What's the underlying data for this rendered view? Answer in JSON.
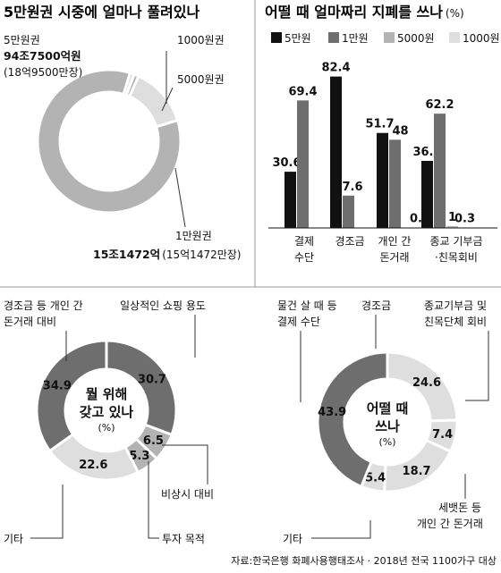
{
  "colors": {
    "black": "#111111",
    "dark": "#6e6e6e",
    "mid": "#b3b3b3",
    "light": "#dedede",
    "leader": "#333333"
  },
  "source": "자료:한국은행 화폐사용행태조사 · 2018년 전국 1100가구 대상",
  "chart_data": [
    {
      "type": "pie",
      "id": "circulation",
      "title": "5만원권 시중에 얼마나 풀려있나",
      "slices": [
        {
          "name": "5만원권",
          "value": 94.75,
          "value_label": "94조7500억원",
          "note": "(18억9500만장)",
          "color": "#b3b3b3"
        },
        {
          "name": "1만원권",
          "value": 15.1472,
          "value_label": "15조1472억",
          "note": "(15억1472만장)",
          "color": "#dedede"
        },
        {
          "name": "5000원권",
          "value": 1.2,
          "value_label": "",
          "note": "",
          "color": "#b3b3b3"
        },
        {
          "name": "1000원권",
          "value": 1.1,
          "value_label": "",
          "note": "",
          "color": "#dedede"
        }
      ]
    },
    {
      "type": "bar",
      "id": "usage",
      "title": "어떨 때 얼마짜리 지폐를 쓰나",
      "unit": "(%)",
      "categories": [
        {
          "line1": "결제",
          "line2": "수단"
        },
        {
          "line1": "경조금",
          "line2": ""
        },
        {
          "line1": "개인 간",
          "line2": "돈거래"
        },
        {
          "line1": "종교 기부금",
          "line2": "·친목회비"
        }
      ],
      "series": [
        {
          "name": "5만원",
          "color": "#111111",
          "values": [
            30.6,
            82.4,
            51.7,
            36.5
          ],
          "labels": [
            "30.6",
            "82.4",
            "51.7",
            "36.5"
          ]
        },
        {
          "name": "1만원",
          "color": "#6e6e6e",
          "values": [
            69.4,
            17.6,
            48,
            62.2
          ],
          "labels": [
            "69.4",
            "17.6",
            "48",
            "62.2"
          ]
        },
        {
          "name": "5000원",
          "color": "#b3b3b3",
          "values": [
            0,
            0,
            0,
            1
          ],
          "labels": [
            "",
            "",
            "",
            "1"
          ]
        },
        {
          "name": "1000원",
          "color": "#dedede",
          "values": [
            0,
            0,
            0.3,
            0.3
          ],
          "labels": [
            "",
            "",
            "0.3",
            "0.3"
          ]
        }
      ],
      "ylim": [
        0,
        90
      ]
    },
    {
      "type": "pie",
      "id": "holding",
      "title": "",
      "center": {
        "line1": "뭘 위해",
        "line2": "갖고 있나",
        "unit": "(%)"
      },
      "slices": [
        {
          "name": "일상적인 쇼핑 용도",
          "value": 30.7,
          "label": "30.7",
          "color": "#6e6e6e"
        },
        {
          "name": "비상시 대비",
          "value": 6.5,
          "label": "6.5",
          "color": "#b3b3b3"
        },
        {
          "name": "투자 목적",
          "value": 5.3,
          "label": "5.3",
          "color": "#b3b3b3"
        },
        {
          "name": "기타",
          "value": 22.6,
          "label": "22.6",
          "color": "#dedede"
        },
        {
          "name": "경조금 등 개인 간 돈거래 대비",
          "value": 34.9,
          "label": "34.9",
          "color": "#6e6e6e"
        }
      ]
    },
    {
      "type": "pie",
      "id": "spending",
      "title": "",
      "center": {
        "line1": "어떨 때",
        "line2": "쓰나",
        "unit": "(%)"
      },
      "slices": [
        {
          "name": "경조금",
          "value": 24.6,
          "label": "24.6",
          "color": "#dedede"
        },
        {
          "name": "종교기부금 및 친목단체 회비",
          "value": 7.4,
          "label": "7.4",
          "color": "#dedede"
        },
        {
          "name": "세뱃돈 등 개인 간 돈거래",
          "value": 18.7,
          "label": "18.7",
          "color": "#dedede"
        },
        {
          "name": "기타",
          "value": 5.4,
          "label": "5.4",
          "color": "#dedede"
        },
        {
          "name": "물건 살 때 등 결제 수단",
          "value": 43.9,
          "label": "43.9",
          "color": "#6e6e6e"
        }
      ]
    }
  ],
  "annotations": {
    "circulation": {
      "fifty_line1": "5만원권",
      "fifty_line2": "94조7500억원",
      "fifty_line3": "(18억9500만장)",
      "thousand": "1000원권",
      "five_thousand": "5000원권",
      "ten_line1": "1만원권",
      "ten_line2_bold": "15조1472억",
      "ten_line2_note": "(15억1472만장)"
    },
    "holding": {
      "shopping": "일상적인 쇼핑 용도",
      "personal_line1": "경조금 등 개인 간",
      "personal_line2": "돈거래 대비",
      "emergency": "비상시 대비",
      "investment": "투자 목적",
      "other": "기타"
    },
    "spending": {
      "payment_line1": "물건 살 때 등",
      "payment_line2": "결제 수단",
      "condolence": "경조금",
      "religious_line1": "종교기부금 및",
      "religious_line2": "친목단체 회비",
      "newyear_line1": "세뱃돈 등",
      "newyear_line2": "개인 간 돈거래",
      "other": "기타"
    }
  }
}
